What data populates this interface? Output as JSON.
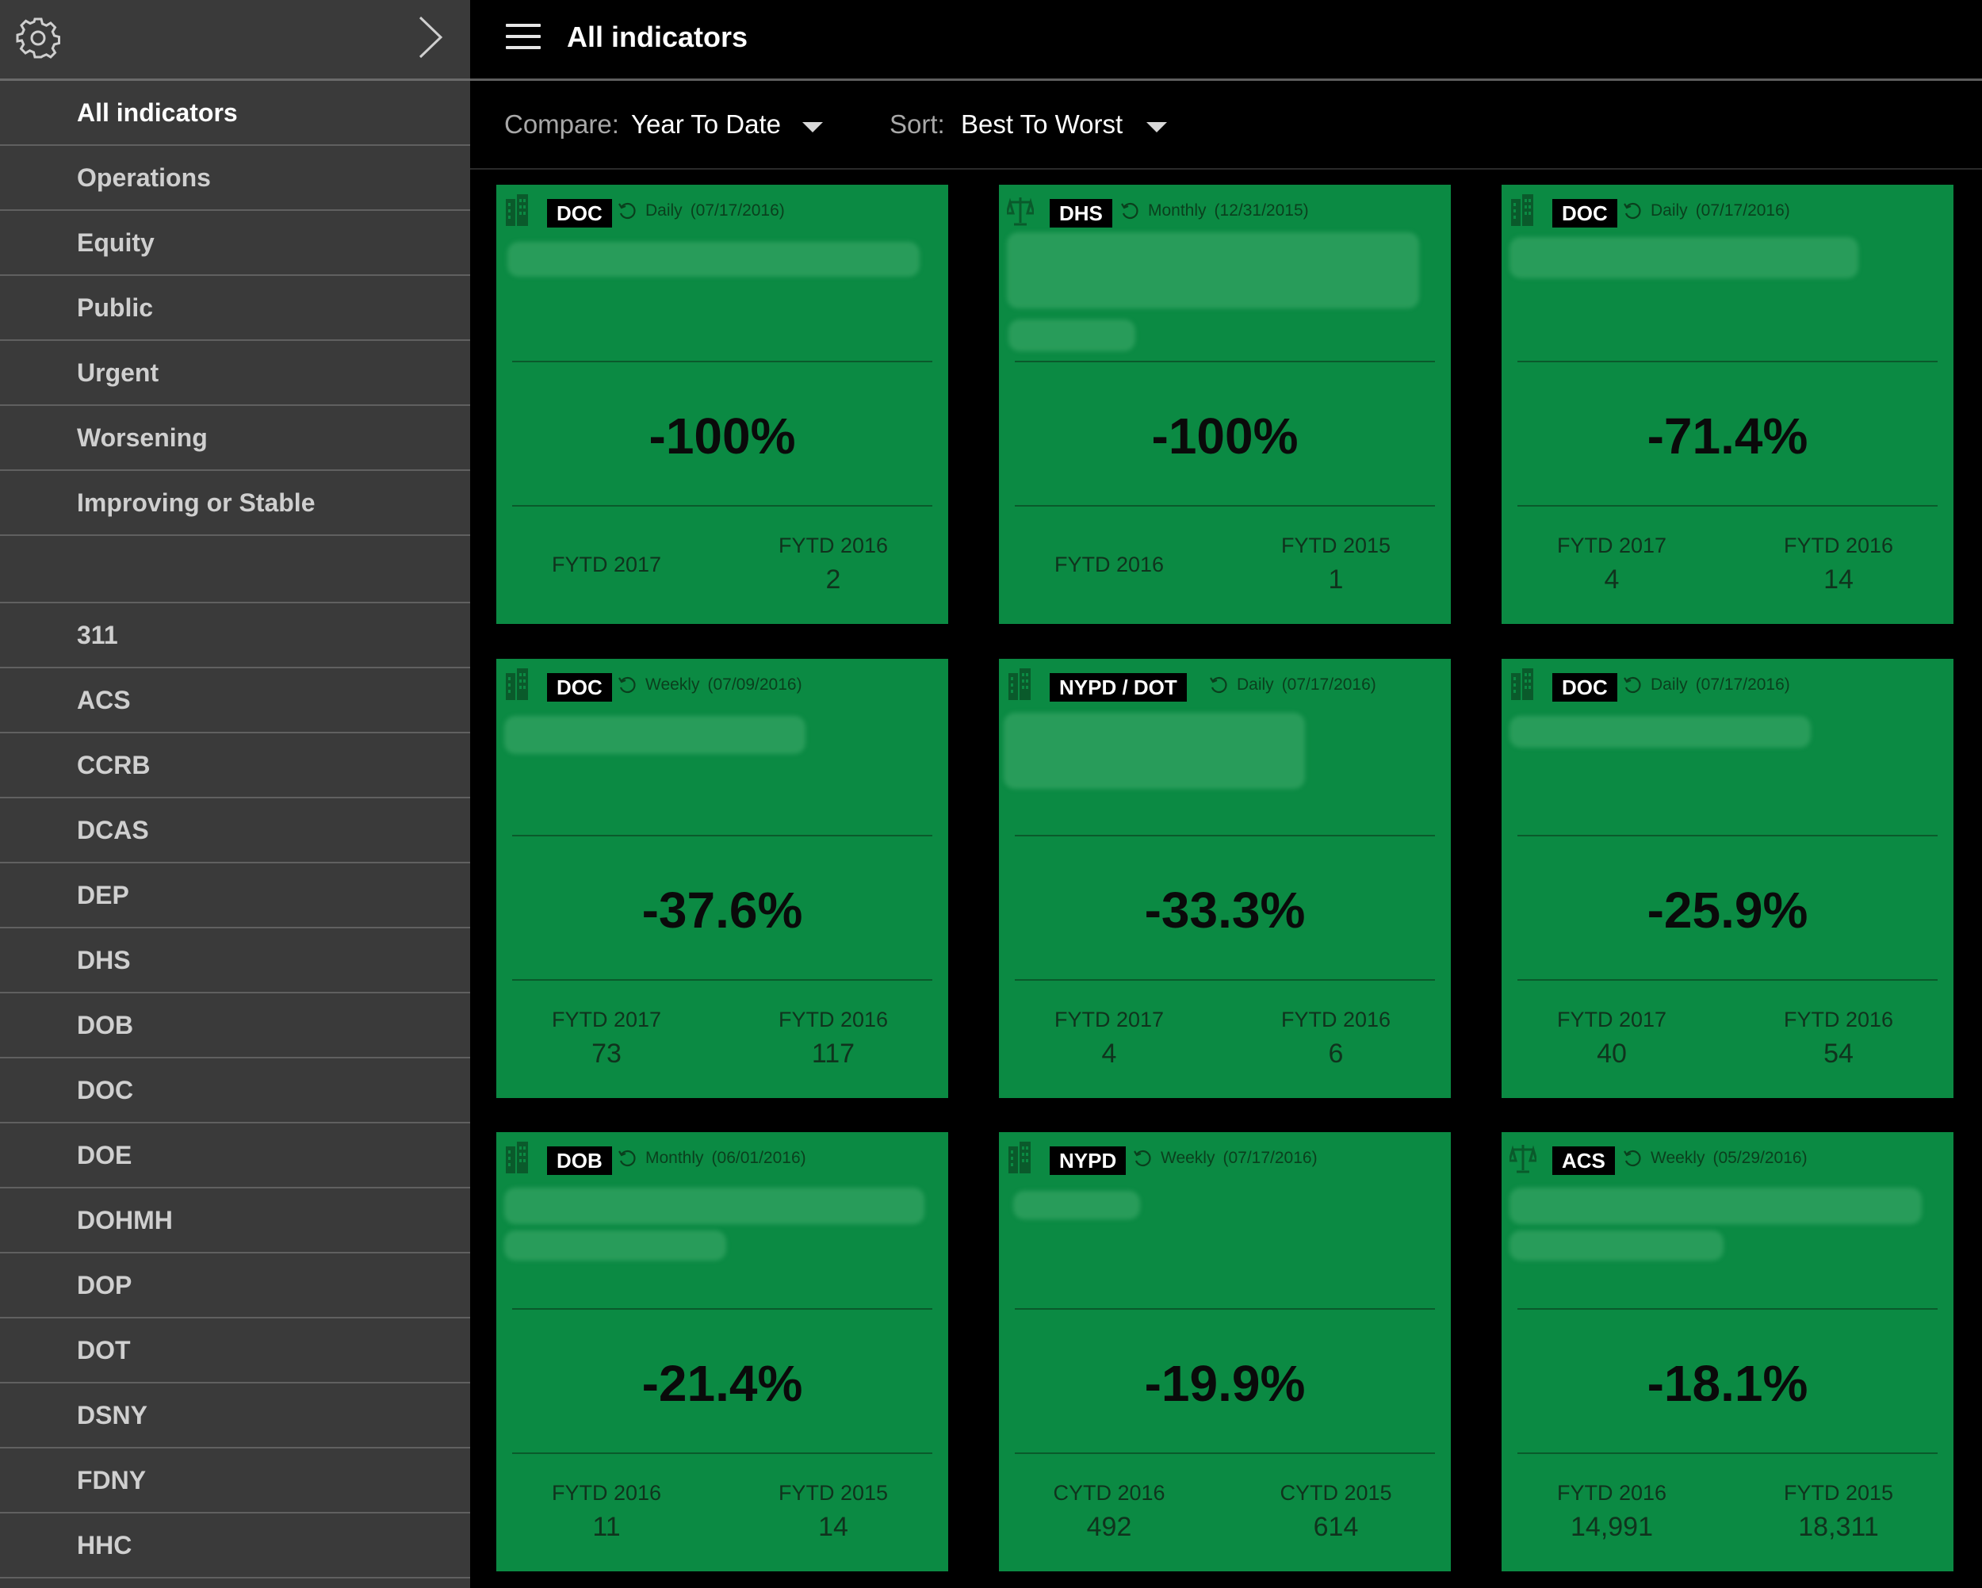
{
  "header": {
    "title": "All indicators"
  },
  "filters": {
    "compare_label": "Compare:",
    "compare_value": "Year To Date",
    "sort_label": "Sort:",
    "sort_value": "Best To Worst"
  },
  "sidebar": {
    "items": [
      "All indicators",
      "Operations",
      "Equity",
      "Public",
      "Urgent",
      "Worsening",
      "Improving or Stable"
    ],
    "agencies": [
      "311",
      "ACS",
      "CCRB",
      "DCAS",
      "DEP",
      "DHS",
      "DOB",
      "DOC",
      "DOE",
      "DOHMH",
      "DOP",
      "DOT",
      "DSNY",
      "FDNY",
      "HHC"
    ]
  },
  "cards": [
    {
      "icon": "building-icon",
      "agency": "DOC",
      "frequency": "Daily",
      "date": "(07/17/2016)",
      "change": "-100%",
      "left_label": "FYTD 2017",
      "left_value": "",
      "right_label": "FYTD 2016",
      "right_value": "2"
    },
    {
      "icon": "scales-icon",
      "agency": "DHS",
      "frequency": "Monthly",
      "date": "(12/31/2015)",
      "change": "-100%",
      "left_label": "FYTD 2016",
      "left_value": "",
      "right_label": "FYTD 2015",
      "right_value": "1"
    },
    {
      "icon": "building-icon",
      "agency": "DOC",
      "frequency": "Daily",
      "date": "(07/17/2016)",
      "change": "-71.4%",
      "left_label": "FYTD 2017",
      "left_value": "4",
      "right_label": "FYTD 2016",
      "right_value": "14"
    },
    {
      "icon": "building-icon",
      "agency": "DOC",
      "frequency": "Weekly",
      "date": "(07/09/2016)",
      "change": "-37.6%",
      "left_label": "FYTD 2017",
      "left_value": "73",
      "right_label": "FYTD 2016",
      "right_value": "117"
    },
    {
      "icon": "building-icon",
      "agency": "NYPD / DOT",
      "frequency": "Daily",
      "date": "(07/17/2016)",
      "change": "-33.3%",
      "left_label": "FYTD 2017",
      "left_value": "4",
      "right_label": "FYTD 2016",
      "right_value": "6"
    },
    {
      "icon": "building-icon",
      "agency": "DOC",
      "frequency": "Daily",
      "date": "(07/17/2016)",
      "change": "-25.9%",
      "left_label": "FYTD 2017",
      "left_value": "40",
      "right_label": "FYTD 2016",
      "right_value": "54"
    },
    {
      "icon": "building-icon",
      "agency": "DOB",
      "frequency": "Monthly",
      "date": "(06/01/2016)",
      "change": "-21.4%",
      "left_label": "FYTD 2016",
      "left_value": "11",
      "right_label": "FYTD 2015",
      "right_value": "14"
    },
    {
      "icon": "building-icon",
      "agency": "NYPD",
      "frequency": "Weekly",
      "date": "(07/17/2016)",
      "change": "-19.9%",
      "left_label": "CYTD 2016",
      "left_value": "492",
      "right_label": "CYTD 2015",
      "right_value": "614"
    },
    {
      "icon": "scales-icon",
      "agency": "ACS",
      "frequency": "Weekly",
      "date": "(05/29/2016)",
      "change": "-18.1%",
      "left_label": "FYTD 2016",
      "left_value": "14,991",
      "right_label": "FYTD 2015",
      "right_value": "18,311"
    }
  ],
  "colors": {
    "card_green": "#0b8a43",
    "sidebar_bg": "#3a3a3a",
    "background": "#000000"
  }
}
